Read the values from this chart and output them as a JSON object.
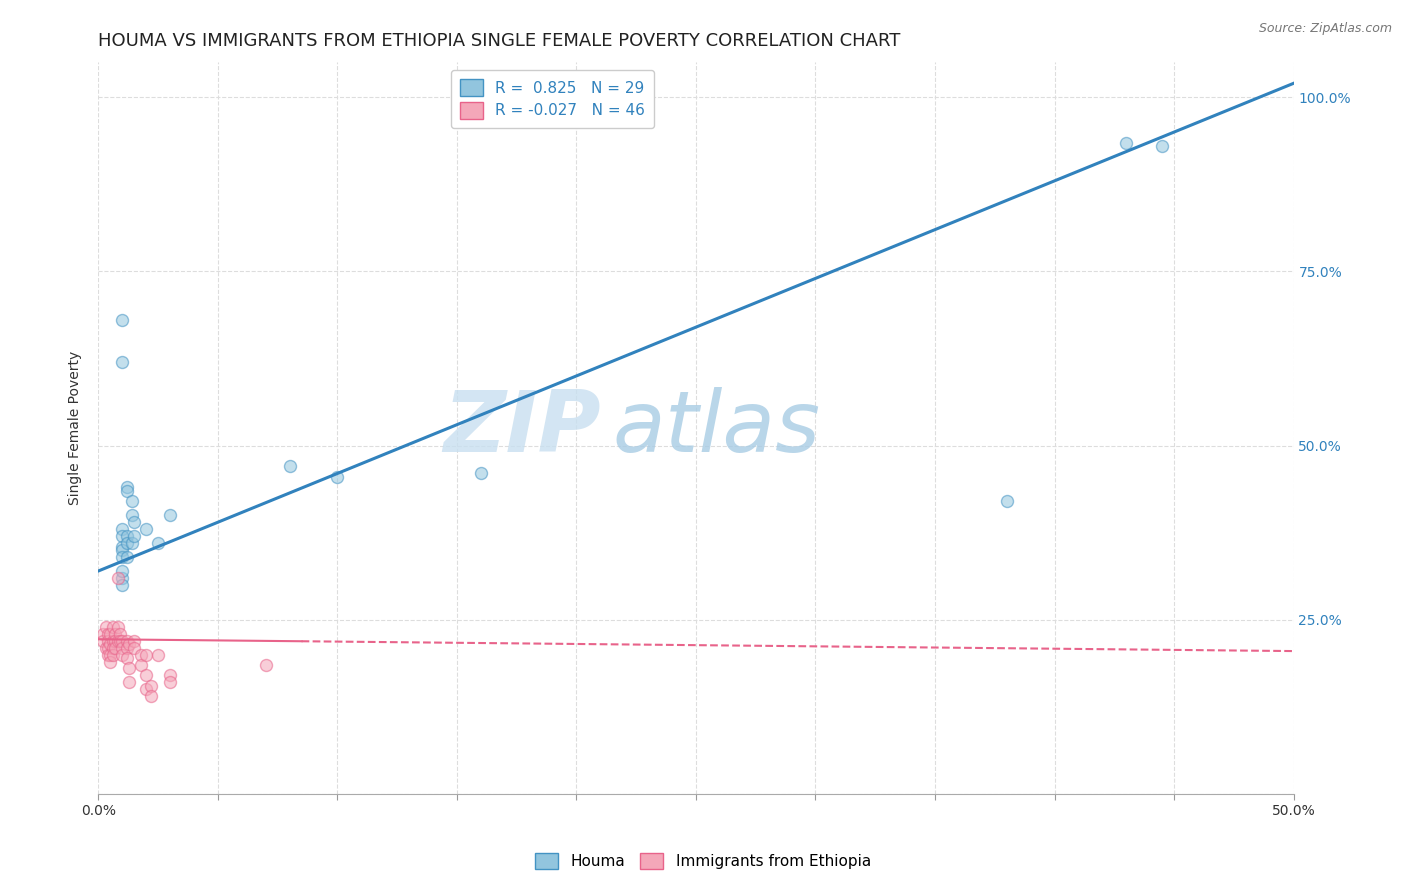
{
  "title": "HOUMA VS IMMIGRANTS FROM ETHIOPIA SINGLE FEMALE POVERTY CORRELATION CHART",
  "source": "Source: ZipAtlas.com",
  "ylabel": "Single Female Poverty",
  "xlim": [
    0.0,
    0.5
  ],
  "ylim": [
    0.0,
    1.05
  ],
  "xticks": [
    0.0,
    0.05,
    0.1,
    0.15,
    0.2,
    0.25,
    0.3,
    0.35,
    0.4,
    0.45,
    0.5
  ],
  "yticks": [
    0.0,
    0.25,
    0.5,
    0.75,
    1.0
  ],
  "xticklabels_show": [
    "0.0%",
    "50.0%"
  ],
  "xticklabels_pos": [
    0.0,
    0.5
  ],
  "right_yticklabels": [
    "",
    "25.0%",
    "50.0%",
    "75.0%",
    "100.0%"
  ],
  "blue_R": 0.825,
  "blue_N": 29,
  "pink_R": -0.027,
  "pink_N": 46,
  "blue_label": "Houma",
  "pink_label": "Immigrants from Ethiopia",
  "blue_color": "#92c5de",
  "pink_color": "#f4a7b9",
  "blue_edge_color": "#4393c3",
  "pink_edge_color": "#e8638a",
  "blue_line_color": "#3182bd",
  "pink_line_color": "#e8638a",
  "legend_R_color": "#3182bd",
  "watermark_zip": "ZIP",
  "watermark_atlas": "atlas",
  "blue_dots": [
    [
      0.01,
      0.68
    ],
    [
      0.01,
      0.62
    ],
    [
      0.012,
      0.44
    ],
    [
      0.012,
      0.435
    ],
    [
      0.014,
      0.42
    ],
    [
      0.014,
      0.4
    ],
    [
      0.01,
      0.38
    ],
    [
      0.01,
      0.37
    ],
    [
      0.01,
      0.355
    ],
    [
      0.01,
      0.35
    ],
    [
      0.01,
      0.34
    ],
    [
      0.012,
      0.37
    ],
    [
      0.012,
      0.36
    ],
    [
      0.012,
      0.34
    ],
    [
      0.014,
      0.36
    ],
    [
      0.01,
      0.31
    ],
    [
      0.01,
      0.32
    ],
    [
      0.01,
      0.3
    ],
    [
      0.015,
      0.39
    ],
    [
      0.015,
      0.37
    ],
    [
      0.02,
      0.38
    ],
    [
      0.025,
      0.36
    ],
    [
      0.03,
      0.4
    ],
    [
      0.08,
      0.47
    ],
    [
      0.1,
      0.455
    ],
    [
      0.16,
      0.46
    ],
    [
      0.38,
      0.42
    ],
    [
      0.43,
      0.935
    ],
    [
      0.445,
      0.93
    ]
  ],
  "pink_dots": [
    [
      0.002,
      0.23
    ],
    [
      0.002,
      0.22
    ],
    [
      0.003,
      0.24
    ],
    [
      0.003,
      0.21
    ],
    [
      0.004,
      0.23
    ],
    [
      0.004,
      0.22
    ],
    [
      0.004,
      0.21
    ],
    [
      0.004,
      0.2
    ],
    [
      0.005,
      0.23
    ],
    [
      0.005,
      0.215
    ],
    [
      0.005,
      0.2
    ],
    [
      0.005,
      0.19
    ],
    [
      0.006,
      0.24
    ],
    [
      0.006,
      0.22
    ],
    [
      0.006,
      0.21
    ],
    [
      0.006,
      0.2
    ],
    [
      0.007,
      0.23
    ],
    [
      0.007,
      0.22
    ],
    [
      0.007,
      0.21
    ],
    [
      0.008,
      0.24
    ],
    [
      0.008,
      0.31
    ],
    [
      0.008,
      0.22
    ],
    [
      0.009,
      0.23
    ],
    [
      0.009,
      0.22
    ],
    [
      0.01,
      0.22
    ],
    [
      0.01,
      0.21
    ],
    [
      0.01,
      0.2
    ],
    [
      0.012,
      0.22
    ],
    [
      0.012,
      0.21
    ],
    [
      0.012,
      0.195
    ],
    [
      0.013,
      0.215
    ],
    [
      0.013,
      0.18
    ],
    [
      0.013,
      0.16
    ],
    [
      0.015,
      0.22
    ],
    [
      0.015,
      0.21
    ],
    [
      0.018,
      0.2
    ],
    [
      0.018,
      0.185
    ],
    [
      0.02,
      0.2
    ],
    [
      0.02,
      0.17
    ],
    [
      0.02,
      0.15
    ],
    [
      0.022,
      0.155
    ],
    [
      0.022,
      0.14
    ],
    [
      0.025,
      0.2
    ],
    [
      0.03,
      0.17
    ],
    [
      0.03,
      0.16
    ],
    [
      0.07,
      0.185
    ]
  ],
  "blue_trendline_x": [
    0.0,
    0.5
  ],
  "blue_trendline_y": [
    0.32,
    1.02
  ],
  "pink_trendline_x": [
    0.0,
    0.5
  ],
  "pink_trendline_y": [
    0.222,
    0.205
  ],
  "background_color": "#ffffff",
  "grid_color": "#dddddd",
  "title_fontsize": 13,
  "axis_fontsize": 10,
  "tick_fontsize": 10,
  "legend_fontsize": 11,
  "dot_size": 75,
  "dot_alpha": 0.55,
  "dot_linewidth": 1.0
}
